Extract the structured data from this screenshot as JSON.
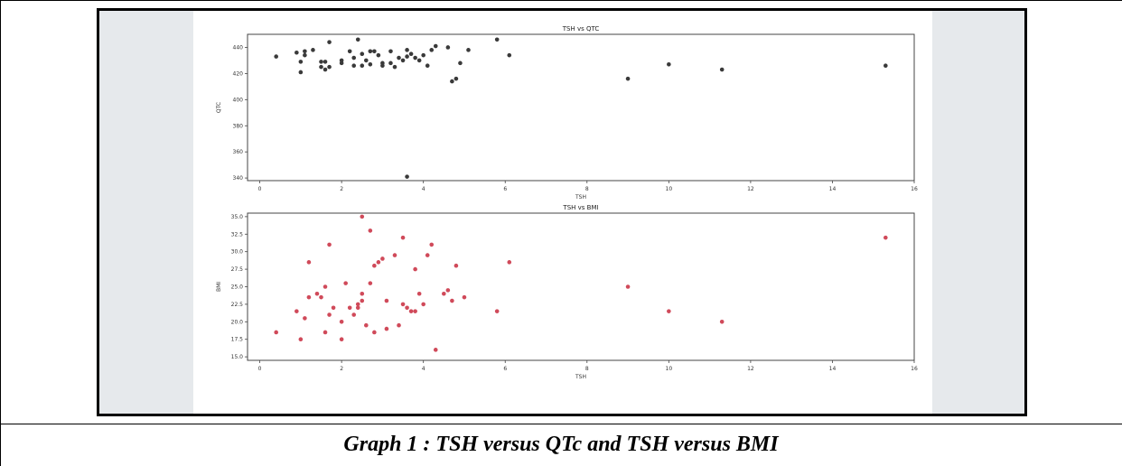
{
  "caption": "Graph 1 : TSH versus QTc and TSH versus BMI",
  "chart_data": [
    {
      "type": "scatter",
      "title": "TSH vs QTC",
      "xlabel": "TSH",
      "ylabel": "QTC",
      "xlim": [
        -0.3,
        16
      ],
      "ylim": [
        338,
        450
      ],
      "xticks": [
        "0",
        "2",
        "4",
        "6",
        "8",
        "10",
        "12",
        "14",
        "16"
      ],
      "yticks": [
        "340",
        "360",
        "380",
        "400",
        "420",
        "440"
      ],
      "grid": false,
      "color": "#3a3a3a",
      "points": [
        [
          0.4,
          433
        ],
        [
          0.9,
          436
        ],
        [
          1.1,
          437
        ],
        [
          1.3,
          438
        ],
        [
          1.7,
          444
        ],
        [
          1.1,
          434
        ],
        [
          1.0,
          429
        ],
        [
          1.0,
          421
        ],
        [
          1.5,
          429
        ],
        [
          1.6,
          429
        ],
        [
          1.6,
          423
        ],
        [
          1.7,
          425
        ],
        [
          1.5,
          425
        ],
        [
          2.0,
          430
        ],
        [
          2.0,
          428
        ],
        [
          2.2,
          437
        ],
        [
          2.3,
          432
        ],
        [
          2.4,
          446
        ],
        [
          2.3,
          426
        ],
        [
          2.5,
          435
        ],
        [
          2.5,
          426
        ],
        [
          2.6,
          430
        ],
        [
          2.7,
          437
        ],
        [
          2.8,
          437
        ],
        [
          2.7,
          427
        ],
        [
          2.9,
          434
        ],
        [
          3.0,
          428
        ],
        [
          3.2,
          437
        ],
        [
          3.2,
          428
        ],
        [
          3.3,
          425
        ],
        [
          3.0,
          426
        ],
        [
          3.4,
          432
        ],
        [
          3.5,
          430
        ],
        [
          3.6,
          438
        ],
        [
          3.6,
          433
        ],
        [
          3.7,
          435
        ],
        [
          3.6,
          341
        ],
        [
          3.8,
          432
        ],
        [
          3.9,
          430
        ],
        [
          4.0,
          434
        ],
        [
          4.1,
          426
        ],
        [
          4.2,
          438
        ],
        [
          4.3,
          441
        ],
        [
          4.6,
          440
        ],
        [
          4.7,
          414
        ],
        [
          4.8,
          416
        ],
        [
          4.9,
          428
        ],
        [
          5.1,
          438
        ],
        [
          5.8,
          446
        ],
        [
          6.1,
          434
        ],
        [
          9.0,
          416
        ],
        [
          10.0,
          427
        ],
        [
          11.3,
          423
        ],
        [
          15.3,
          426
        ]
      ]
    },
    {
      "type": "scatter",
      "title": "TSH vs BMI",
      "xlabel": "TSH",
      "ylabel": "BMI",
      "xlim": [
        -0.3,
        16
      ],
      "ylim": [
        14.5,
        35.5
      ],
      "xticks": [
        "0",
        "2",
        "4",
        "6",
        "8",
        "10",
        "12",
        "14",
        "16"
      ],
      "yticks": [
        "15.0",
        "17.5",
        "20.0",
        "22.5",
        "25.0",
        "27.5",
        "30.0",
        "32.5",
        "35.0"
      ],
      "grid": false,
      "color": "#d04a5a",
      "points": [
        [
          0.4,
          18.5
        ],
        [
          0.9,
          21.5
        ],
        [
          1.0,
          17.5
        ],
        [
          1.1,
          20.5
        ],
        [
          1.2,
          28.5
        ],
        [
          1.2,
          23.5
        ],
        [
          1.4,
          24.0
        ],
        [
          1.5,
          23.5
        ],
        [
          1.6,
          25.0
        ],
        [
          1.6,
          18.5
        ],
        [
          1.7,
          21.0
        ],
        [
          1.7,
          31.0
        ],
        [
          1.8,
          22.0
        ],
        [
          2.0,
          17.5
        ],
        [
          2.0,
          20.0
        ],
        [
          2.1,
          25.5
        ],
        [
          2.2,
          22.0
        ],
        [
          2.3,
          21.0
        ],
        [
          2.4,
          22.5
        ],
        [
          2.4,
          22.0
        ],
        [
          2.5,
          35.0
        ],
        [
          2.5,
          23.0
        ],
        [
          2.5,
          24.0
        ],
        [
          2.6,
          19.5
        ],
        [
          2.7,
          33.0
        ],
        [
          2.7,
          25.5
        ],
        [
          2.8,
          28.0
        ],
        [
          2.8,
          18.5
        ],
        [
          2.9,
          28.5
        ],
        [
          3.0,
          29.0
        ],
        [
          3.1,
          23.0
        ],
        [
          3.1,
          19.0
        ],
        [
          3.3,
          29.5
        ],
        [
          3.4,
          19.5
        ],
        [
          3.5,
          32.0
        ],
        [
          3.5,
          22.5
        ],
        [
          3.6,
          22.0
        ],
        [
          3.7,
          21.5
        ],
        [
          3.8,
          21.5
        ],
        [
          3.8,
          27.5
        ],
        [
          3.9,
          24.0
        ],
        [
          4.0,
          22.5
        ],
        [
          4.1,
          29.5
        ],
        [
          4.2,
          31.0
        ],
        [
          4.3,
          16.0
        ],
        [
          4.5,
          24.0
        ],
        [
          4.6,
          24.5
        ],
        [
          4.7,
          23.0
        ],
        [
          4.8,
          28.0
        ],
        [
          5.0,
          23.5
        ],
        [
          5.8,
          21.5
        ],
        [
          6.1,
          28.5
        ],
        [
          9.0,
          25.0
        ],
        [
          10.0,
          21.5
        ],
        [
          11.3,
          20.0
        ],
        [
          15.3,
          32.0
        ]
      ]
    }
  ]
}
